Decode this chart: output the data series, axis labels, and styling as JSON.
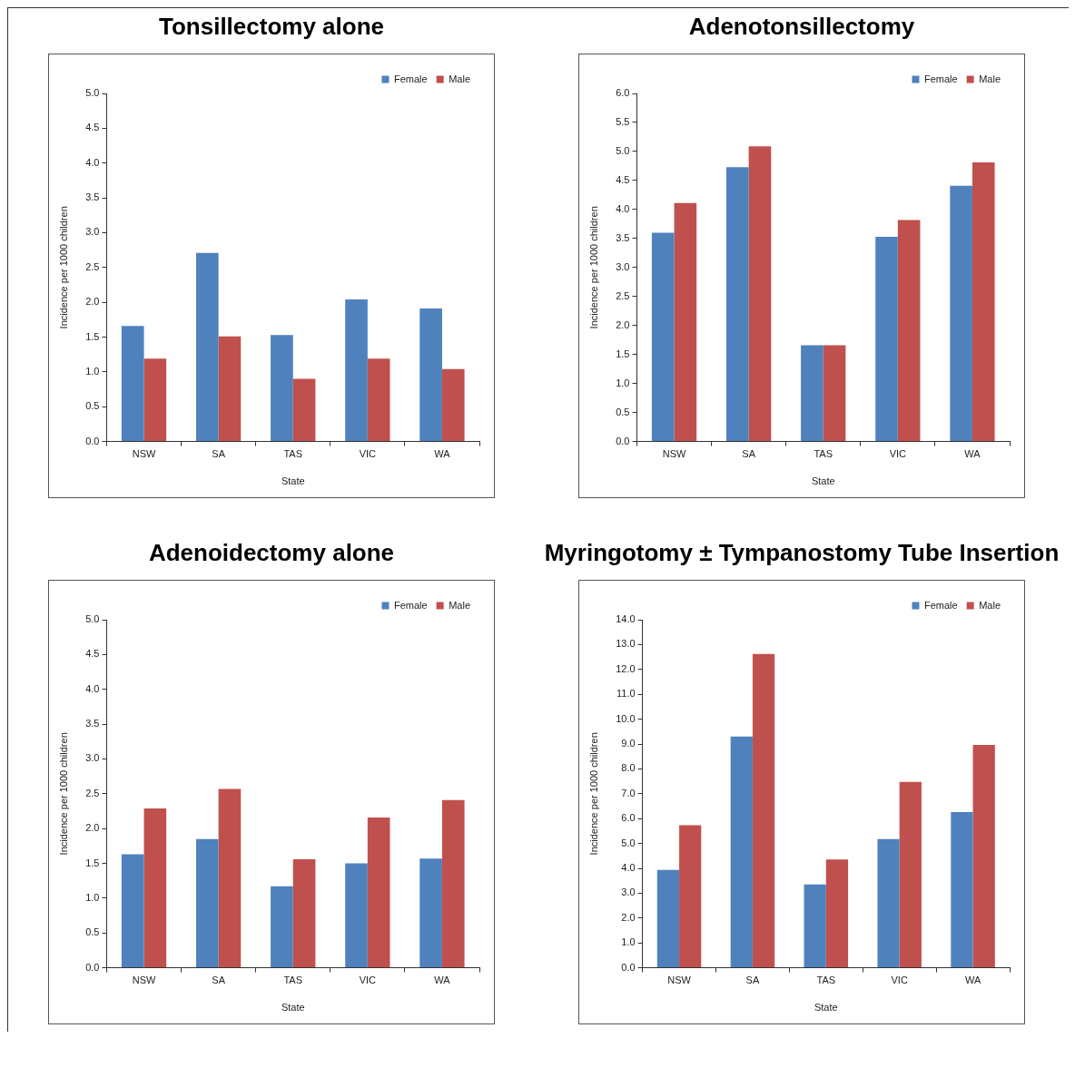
{
  "chart_data": [
    {
      "type": "bar",
      "title": "Tonsillectomy alone",
      "xlabel": "State",
      "ylabel": "Incidence per 1000 children",
      "categories": [
        "NSW",
        "SA",
        "TAS",
        "VIC",
        "WA"
      ],
      "series": [
        {
          "name": "Female",
          "color": "#4f81bd",
          "values": [
            1.66,
            2.71,
            1.53,
            2.04,
            1.91
          ]
        },
        {
          "name": "Male",
          "color": "#c0504d",
          "values": [
            1.19,
            1.51,
            0.9,
            1.19,
            1.04
          ]
        }
      ],
      "ylim": [
        0,
        5
      ],
      "yticks": [
        {
          "value": 0,
          "label": "0.0"
        },
        {
          "value": 0.5,
          "label": "0.5"
        },
        {
          "value": 1,
          "label": "1.0"
        },
        {
          "value": 1.5,
          "label": "1.5"
        },
        {
          "value": 2,
          "label": "2.0"
        },
        {
          "value": 2.5,
          "label": "2.5"
        },
        {
          "value": 3,
          "label": "3.0"
        },
        {
          "value": 3.5,
          "label": "3.5"
        },
        {
          "value": 4,
          "label": "4.0"
        },
        {
          "value": 4.5,
          "label": "4.5"
        },
        {
          "value": 5,
          "label": "5.0"
        }
      ],
      "grid": false,
      "legend": "top right"
    },
    {
      "type": "bar",
      "title": "Adenotonsillectomy",
      "xlabel": "State",
      "ylabel": "Incidence per 1000 children",
      "categories": [
        "NSW",
        "SA",
        "TAS",
        "VIC",
        "WA"
      ],
      "series": [
        {
          "name": "Female",
          "color": "#4f81bd",
          "values": [
            3.6,
            4.73,
            1.66,
            3.53,
            4.41
          ]
        },
        {
          "name": "Male",
          "color": "#c0504d",
          "values": [
            4.11,
            5.09,
            1.66,
            3.82,
            4.81
          ]
        }
      ],
      "ylim": [
        0,
        6
      ],
      "yticks": [
        {
          "value": 0,
          "label": "0.0"
        },
        {
          "value": 0.5,
          "label": "0.5"
        },
        {
          "value": 1,
          "label": "1.0"
        },
        {
          "value": 1.5,
          "label": "1.5"
        },
        {
          "value": 2,
          "label": "2.0"
        },
        {
          "value": 2.5,
          "label": "2.5"
        },
        {
          "value": 3,
          "label": "3.0"
        },
        {
          "value": 3.5,
          "label": "3.5"
        },
        {
          "value": 4,
          "label": "4.0"
        },
        {
          "value": 4.5,
          "label": "4.5"
        },
        {
          "value": 5,
          "label": "5.0"
        },
        {
          "value": 5.5,
          "label": "5.5"
        },
        {
          "value": 6,
          "label": "6.0"
        }
      ],
      "grid": false,
      "legend": "top right"
    },
    {
      "type": "bar",
      "title": "Adenoidectomy alone",
      "xlabel": "State",
      "ylabel": "Incidence per 1000 children",
      "categories": [
        "NSW",
        "SA",
        "TAS",
        "VIC",
        "WA"
      ],
      "series": [
        {
          "name": "Female",
          "color": "#4f81bd",
          "values": [
            1.63,
            1.85,
            1.17,
            1.5,
            1.57
          ]
        },
        {
          "name": "Male",
          "color": "#c0504d",
          "values": [
            2.29,
            2.57,
            1.56,
            2.16,
            2.41
          ]
        }
      ],
      "ylim": [
        0,
        5
      ],
      "yticks": [
        {
          "value": 0,
          "label": "0.0"
        },
        {
          "value": 0.5,
          "label": "0.5"
        },
        {
          "value": 1,
          "label": "1.0"
        },
        {
          "value": 1.5,
          "label": "1.5"
        },
        {
          "value": 2,
          "label": "2.0"
        },
        {
          "value": 2.5,
          "label": "2.5"
        },
        {
          "value": 3,
          "label": "3.0"
        },
        {
          "value": 3.5,
          "label": "3.5"
        },
        {
          "value": 4,
          "label": "4.0"
        },
        {
          "value": 4.5,
          "label": "4.5"
        },
        {
          "value": 5,
          "label": "5.0"
        }
      ],
      "grid": false,
      "legend": "top right"
    },
    {
      "type": "bar",
      "title": "Myringotomy ± Tympanostomy Tube Insertion",
      "xlabel": "State",
      "ylabel": "Incidence per 1000 children",
      "categories": [
        "NSW",
        "SA",
        "TAS",
        "VIC",
        "WA"
      ],
      "series": [
        {
          "name": "Female",
          "color": "#4f81bd",
          "values": [
            3.94,
            9.3,
            3.35,
            5.18,
            6.26
          ]
        },
        {
          "name": "Male",
          "color": "#c0504d",
          "values": [
            5.73,
            12.62,
            4.36,
            7.48,
            8.96
          ]
        }
      ],
      "ylim": [
        0,
        14
      ],
      "yticks": [
        {
          "value": 0,
          "label": "0.0"
        },
        {
          "value": 1,
          "label": "1.0"
        },
        {
          "value": 2,
          "label": "2.0"
        },
        {
          "value": 3,
          "label": "3.0"
        },
        {
          "value": 4,
          "label": "4.0"
        },
        {
          "value": 5,
          "label": "5.0"
        },
        {
          "value": 6,
          "label": "6.0"
        },
        {
          "value": 7,
          "label": "7.0"
        },
        {
          "value": 8,
          "label": "8.0"
        },
        {
          "value": 9,
          "label": "9.0"
        },
        {
          "value": 10,
          "label": "10.0"
        },
        {
          "value": 11,
          "label": "11.0"
        },
        {
          "value": 12,
          "label": "12.0"
        },
        {
          "value": 13,
          "label": "13.0"
        },
        {
          "value": 14,
          "label": "14.0"
        }
      ],
      "grid": false,
      "legend": "top right"
    }
  ]
}
